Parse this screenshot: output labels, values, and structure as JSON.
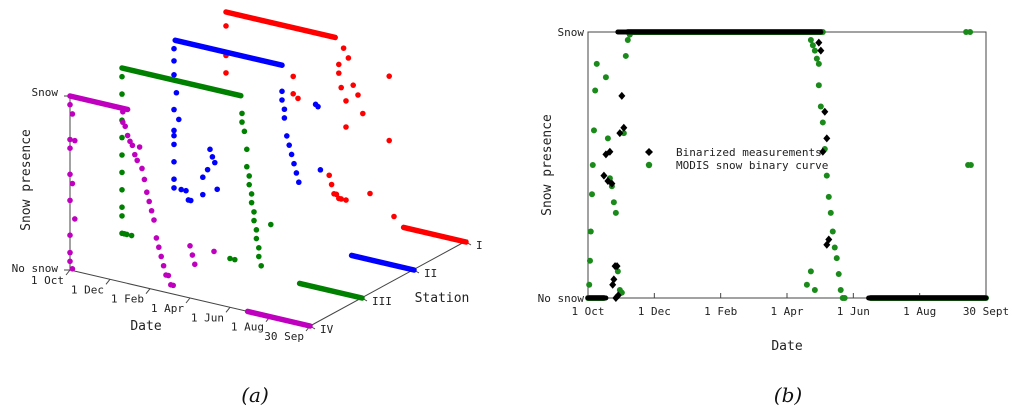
{
  "chart_data": [
    {
      "type": "scatter",
      "panel_label": "(a)",
      "view": "3d",
      "xlabel": "Date",
      "ylabel": "Snow presence",
      "zlabel": "Station",
      "x_ticks": [
        "1 Oct",
        "1 Dec",
        "1 Feb",
        "1 Apr",
        "1 Jun",
        "1 Aug",
        "30 Sep"
      ],
      "y_ticks": [
        "No snow",
        "Snow"
      ],
      "stations": [
        "I",
        "II",
        "III",
        "IV"
      ],
      "series": [
        {
          "station": "I",
          "color": "#ff0000",
          "segments": [
            {
              "from": 0,
              "to": 0.455,
              "level": 1
            },
            {
              "from": 0.74,
              "to": 1.0,
              "level": 0
            }
          ],
          "points": [
            [
              0.0,
              0.92
            ],
            [
              0.0,
              0.75
            ],
            [
              0.0,
              0.65
            ],
            [
              0.28,
              0.72
            ],
            [
              0.28,
              0.62
            ],
            [
              0.3,
              0.6
            ],
            [
              0.47,
              0.85
            ],
            [
              0.47,
              0.8
            ],
            [
              0.48,
              0.72
            ],
            [
              0.49,
              0.95
            ],
            [
              0.5,
              0.65
            ],
            [
              0.5,
              0.5
            ],
            [
              0.51,
              0.9
            ],
            [
              0.53,
              0.75
            ],
            [
              0.55,
              0.7
            ],
            [
              0.57,
              0.6
            ],
            [
              0.6,
              0.15
            ],
            [
              0.68,
              0.85
            ],
            [
              0.68,
              0.48
            ],
            [
              0.7,
              0.05
            ],
            [
              0.43,
              0.2
            ],
            [
              0.44,
              0.15
            ],
            [
              0.45,
              0.1
            ],
            [
              0.46,
              0.1
            ],
            [
              0.47,
              0.08
            ],
            [
              0.48,
              0.08
            ],
            [
              0.5,
              0.08
            ]
          ]
        },
        {
          "station": "II",
          "color": "#0000ff",
          "segments": [
            {
              "from": 0.005,
              "to": 0.45,
              "level": 1
            },
            {
              "from": 0.74,
              "to": 1.0,
              "level": 0
            }
          ],
          "points": [
            [
              0.0,
              0.95
            ],
            [
              0.0,
              0.88
            ],
            [
              0.0,
              0.8
            ],
            [
              0.01,
              0.7
            ],
            [
              0.0,
              0.6
            ],
            [
              0.02,
              0.55
            ],
            [
              0.0,
              0.48
            ],
            [
              0.0,
              0.45
            ],
            [
              0.0,
              0.4
            ],
            [
              0.0,
              0.3
            ],
            [
              0.0,
              0.2
            ],
            [
              0.0,
              0.15
            ],
            [
              0.03,
              0.15
            ],
            [
              0.05,
              0.15
            ],
            [
              0.06,
              0.1
            ],
            [
              0.07,
              0.1
            ],
            [
              0.12,
              0.15
            ],
            [
              0.12,
              0.25
            ],
            [
              0.14,
              0.3
            ],
            [
              0.15,
              0.42
            ],
            [
              0.16,
              0.38
            ],
            [
              0.17,
              0.35
            ],
            [
              0.18,
              0.2
            ],
            [
              0.45,
              0.85
            ],
            [
              0.45,
              0.8
            ],
            [
              0.46,
              0.75
            ],
            [
              0.46,
              0.7
            ],
            [
              0.47,
              0.6
            ],
            [
              0.48,
              0.55
            ],
            [
              0.49,
              0.5
            ],
            [
              0.5,
              0.45
            ],
            [
              0.51,
              0.4
            ],
            [
              0.52,
              0.35
            ],
            [
              0.59,
              0.82
            ],
            [
              0.6,
              0.81
            ],
            [
              0.61,
              0.45
            ]
          ]
        },
        {
          "station": "III",
          "color": "#008000",
          "segments": [
            {
              "from": 0.0,
              "to": 0.495,
              "level": 1
            },
            {
              "from": 0.74,
              "to": 1.0,
              "level": 0
            }
          ],
          "points": [
            [
              0.0,
              0.95
            ],
            [
              0.0,
              0.85
            ],
            [
              0.0,
              0.7
            ],
            [
              0.0,
              0.6
            ],
            [
              0.0,
              0.5
            ],
            [
              0.0,
              0.4
            ],
            [
              0.0,
              0.3
            ],
            [
              0.0,
              0.2
            ],
            [
              0.0,
              0.15
            ],
            [
              0.0,
              0.05
            ],
            [
              0.01,
              0.05
            ],
            [
              0.02,
              0.05
            ],
            [
              0.04,
              0.05
            ],
            [
              0.45,
              0.05
            ],
            [
              0.47,
              0.05
            ],
            [
              0.5,
              0.9
            ],
            [
              0.5,
              0.85
            ],
            [
              0.51,
              0.8
            ],
            [
              0.52,
              0.7
            ],
            [
              0.52,
              0.6
            ],
            [
              0.53,
              0.55
            ],
            [
              0.53,
              0.5
            ],
            [
              0.54,
              0.45
            ],
            [
              0.54,
              0.4
            ],
            [
              0.55,
              0.35
            ],
            [
              0.55,
              0.3
            ],
            [
              0.56,
              0.25
            ],
            [
              0.56,
              0.2
            ],
            [
              0.57,
              0.15
            ],
            [
              0.57,
              0.1
            ],
            [
              0.58,
              0.05
            ],
            [
              0.62,
              0.3
            ]
          ]
        },
        {
          "station": "IV",
          "color": "#bf00bf",
          "segments": [
            {
              "from": 0.0,
              "to": 0.24,
              "level": 1
            },
            {
              "from": 0.74,
              "to": 1.0,
              "level": 0
            }
          ],
          "points": [
            [
              0.0,
              0.95
            ],
            [
              0.01,
              0.9
            ],
            [
              0.0,
              0.75
            ],
            [
              0.02,
              0.75
            ],
            [
              0.0,
              0.7
            ],
            [
              0.0,
              0.55
            ],
            [
              0.01,
              0.5
            ],
            [
              0.0,
              0.4
            ],
            [
              0.02,
              0.3
            ],
            [
              0.0,
              0.2
            ],
            [
              0.0,
              0.1
            ],
            [
              0.0,
              0.05
            ],
            [
              0.01,
              0.01
            ],
            [
              0.22,
              0.98
            ],
            [
              0.22,
              0.92
            ],
            [
              0.23,
              0.9
            ],
            [
              0.24,
              0.85
            ],
            [
              0.25,
              0.82
            ],
            [
              0.26,
              0.8
            ],
            [
              0.27,
              0.75
            ],
            [
              0.28,
              0.72
            ],
            [
              0.29,
              0.8
            ],
            [
              0.3,
              0.68
            ],
            [
              0.31,
              0.62
            ],
            [
              0.32,
              0.55
            ],
            [
              0.33,
              0.5
            ],
            [
              0.34,
              0.45
            ],
            [
              0.35,
              0.4
            ],
            [
              0.36,
              0.3
            ],
            [
              0.37,
              0.25
            ],
            [
              0.38,
              0.2
            ],
            [
              0.39,
              0.15
            ],
            [
              0.4,
              0.1
            ],
            [
              0.41,
              0.1
            ],
            [
              0.42,
              0.05
            ],
            [
              0.43,
              0.05
            ],
            [
              0.5,
              0.3
            ],
            [
              0.51,
              0.25
            ],
            [
              0.52,
              0.2
            ],
            [
              0.6,
              0.3
            ]
          ]
        }
      ]
    },
    {
      "type": "scatter",
      "panel_label": "(b)",
      "xlabel": "Date",
      "ylabel": "Snow presence",
      "x_ticks": [
        "1 Oct",
        "1 Dec",
        "1 Feb",
        "1 Apr",
        "1 Jun",
        "1 Aug",
        "30 Sept"
      ],
      "y_ticks": [
        "No snow",
        "Snow"
      ],
      "series": [
        {
          "name": "Binarized measurements",
          "marker": "diamond",
          "color": "#000000",
          "segments": [
            {
              "from": 0.0,
              "to": 0.045,
              "level": 0
            },
            {
              "from": 0.075,
              "to": 0.585,
              "level": 1
            },
            {
              "from": 0.705,
              "to": 1.0,
              "level": 0
            }
          ],
          "points": [
            [
              0.04,
              0.46
            ],
            [
              0.045,
              0.54
            ],
            [
              0.05,
              0.44
            ],
            [
              0.055,
              0.55
            ],
            [
              0.06,
              0.43
            ],
            [
              0.062,
              0.05
            ],
            [
              0.065,
              0.07
            ],
            [
              0.068,
              0.12
            ],
            [
              0.07,
              0.0
            ],
            [
              0.073,
              0.12
            ],
            [
              0.076,
              0.01
            ],
            [
              0.08,
              0.62
            ],
            [
              0.085,
              0.76
            ],
            [
              0.09,
              0.64
            ],
            [
              0.58,
              0.96
            ],
            [
              0.585,
              0.93
            ],
            [
              0.59,
              0.55
            ],
            [
              0.595,
              0.7
            ],
            [
              0.6,
              0.6
            ],
            [
              0.6,
              0.2
            ],
            [
              0.605,
              0.22
            ]
          ]
        },
        {
          "name": "MODIS snow binary curve",
          "marker": "circle",
          "color": "#1a8a1a",
          "segments": [
            {
              "from": 0.0,
              "to": 0.04,
              "level": 0
            },
            {
              "from": 0.1,
              "to": 0.59,
              "level": 1
            },
            {
              "from": 0.71,
              "to": 1.0,
              "level": 0
            }
          ],
          "points": [
            [
              0.003,
              0.05
            ],
            [
              0.005,
              0.14
            ],
            [
              0.007,
              0.25
            ],
            [
              0.01,
              0.39
            ],
            [
              0.012,
              0.5
            ],
            [
              0.015,
              0.63
            ],
            [
              0.018,
              0.78
            ],
            [
              0.022,
              0.88
            ],
            [
              0.045,
              0.83
            ],
            [
              0.05,
              0.6
            ],
            [
              0.055,
              0.45
            ],
            [
              0.06,
              0.42
            ],
            [
              0.065,
              0.36
            ],
            [
              0.07,
              0.32
            ],
            [
              0.075,
              0.1
            ],
            [
              0.08,
              0.03
            ],
            [
              0.085,
              0.02
            ],
            [
              0.09,
              0.62
            ],
            [
              0.095,
              0.91
            ],
            [
              0.1,
              0.97
            ],
            [
              0.105,
              0.99
            ],
            [
              0.11,
              1.0
            ],
            [
              0.56,
              0.97
            ],
            [
              0.565,
              0.95
            ],
            [
              0.57,
              0.93
            ],
            [
              0.575,
              0.9
            ],
            [
              0.58,
              0.88
            ],
            [
              0.58,
              0.8
            ],
            [
              0.585,
              0.72
            ],
            [
              0.59,
              0.66
            ],
            [
              0.595,
              0.56
            ],
            [
              0.6,
              0.46
            ],
            [
              0.605,
              0.38
            ],
            [
              0.61,
              0.32
            ],
            [
              0.615,
              0.25
            ],
            [
              0.62,
              0.19
            ],
            [
              0.625,
              0.15
            ],
            [
              0.63,
              0.09
            ],
            [
              0.635,
              0.03
            ],
            [
              0.64,
              0.0
            ],
            [
              0.645,
              0.0
            ],
            [
              0.95,
              1.0
            ],
            [
              0.96,
              1.0
            ],
            [
              0.955,
              0.5
            ],
            [
              0.962,
              0.5
            ],
            [
              0.55,
              0.05
            ],
            [
              0.56,
              0.1
            ],
            [
              0.57,
              0.03
            ]
          ]
        }
      ]
    }
  ]
}
